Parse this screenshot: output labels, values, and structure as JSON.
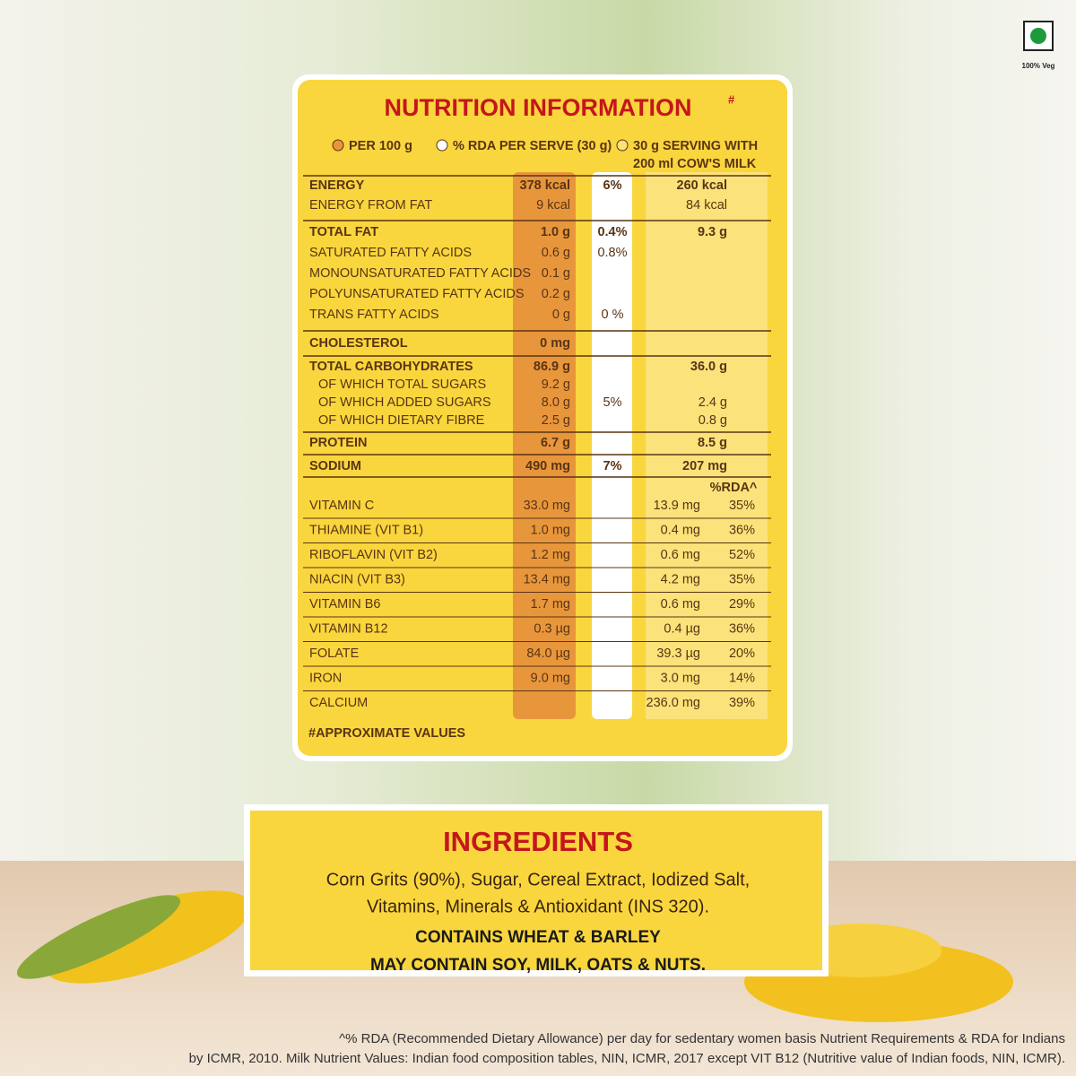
{
  "badge": "100% Veg",
  "nutrition": {
    "title": "NUTRITION INFORMATION",
    "title_mark": "#",
    "columns": {
      "per100": "PER 100 g",
      "rda": "% RDA PER SERVE (30 g)",
      "serving": [
        "30 g SERVING WITH",
        "200 ml COW'S MILK"
      ]
    },
    "groups": [
      {
        "rows": [
          {
            "label": "ENERGY",
            "per100": "378 kcal",
            "rda": "6%",
            "serving": "260 kcal"
          },
          {
            "label": "ENERGY FROM FAT",
            "per100": "9 kcal",
            "serving": "84 kcal"
          }
        ]
      },
      {
        "rows": [
          {
            "label": "TOTAL FAT",
            "per100": "1.0 g",
            "rda": "0.4%",
            "serving": "9.3 g"
          },
          {
            "label": "SATURATED FATTY ACIDS",
            "per100": "0.6 g",
            "rda": "0.8%"
          },
          {
            "label": "MONOUNSATURATED FATTY ACIDS",
            "per100": "0.1 g"
          },
          {
            "label": "POLYUNSATURATED FATTY ACIDS",
            "per100": "0.2 g"
          },
          {
            "label": "TRANS FATTY ACIDS",
            "per100": "0 g",
            "rda": "0 %"
          }
        ]
      },
      {
        "rows": [
          {
            "label": "CHOLESTEROL",
            "per100": "0 mg"
          }
        ]
      },
      {
        "rows": [
          {
            "label": "TOTAL CARBOHYDRATES",
            "per100": "86.9 g",
            "serving": "36.0 g"
          },
          {
            "label": "OF WHICH TOTAL SUGARS",
            "per100": "9.2 g"
          },
          {
            "label": "OF WHICH ADDED SUGARS",
            "per100": "8.0 g",
            "rda": "5%",
            "serving": "2.4 g"
          },
          {
            "label": "OF WHICH DIETARY FIBRE",
            "per100": "2.5 g",
            "serving": "0.8 g"
          }
        ]
      },
      {
        "rows": [
          {
            "label": "PROTEIN",
            "per100": "6.7 g",
            "serving": "8.5 g"
          }
        ]
      },
      {
        "rows": [
          {
            "label": "SODIUM",
            "per100": "490 mg",
            "rda": "7%",
            "serving": "207 mg"
          }
        ]
      },
      {
        "serving_rda_header": "%RDA^",
        "rows": [
          {
            "label": "VITAMIN C",
            "per100": "33.0 mg",
            "serving": "13.9 mg",
            "serving_rda": "35%"
          },
          {
            "label": "THIAMINE (VIT B1)",
            "per100": "1.0 mg",
            "serving": "0.4 mg",
            "serving_rda": "36%"
          },
          {
            "label": "RIBOFLAVIN (VIT B2)",
            "per100": "1.2 mg",
            "serving": "0.6 mg",
            "serving_rda": "52%"
          },
          {
            "label": "NIACIN (VIT B3)",
            "per100": "13.4 mg",
            "serving": "4.2 mg",
            "serving_rda": "35%"
          },
          {
            "label": "VITAMIN B6",
            "per100": "1.7 mg",
            "serving": "0.6 mg",
            "serving_rda": "29%"
          },
          {
            "label": "VITAMIN B12",
            "per100": "0.3 µg",
            "serving": "0.4 µg",
            "serving_rda": "36%"
          },
          {
            "label": "FOLATE",
            "per100": "84.0 µg",
            "serving": "39.3 µg",
            "serving_rda": "20%"
          },
          {
            "label": "IRON",
            "per100": "9.0 mg",
            "serving": "3.0 mg",
            "serving_rda": "14%"
          },
          {
            "label": "CALCIUM",
            "serving": "236.0 mg",
            "serving_rda": "39%"
          }
        ]
      }
    ],
    "footnote": "#APPROXIMATE VALUES"
  },
  "ingredients": {
    "title": "INGREDIENTS",
    "text": [
      "Corn Grits (90%), Sugar, Cereal Extract, Iodized Salt,",
      "Vitamins, Minerals & Antioxidant (INS 320)."
    ],
    "contains": "CONTAINS WHEAT & BARLEY",
    "may_contain": "MAY CONTAIN SOY, MILK, OATS & NUTS."
  },
  "disclaimer": [
    "^% RDA (Recommended Dietary Allowance) per day for sedentary women basis Nutrient Requirements & RDA for Indians",
    "by ICMR, 2010. Milk Nutrient Values: Indian food composition tables, NIN, ICMR, 2017 except VIT B12 (Nutritive value of Indian foods, NIN, ICMR)."
  ]
}
